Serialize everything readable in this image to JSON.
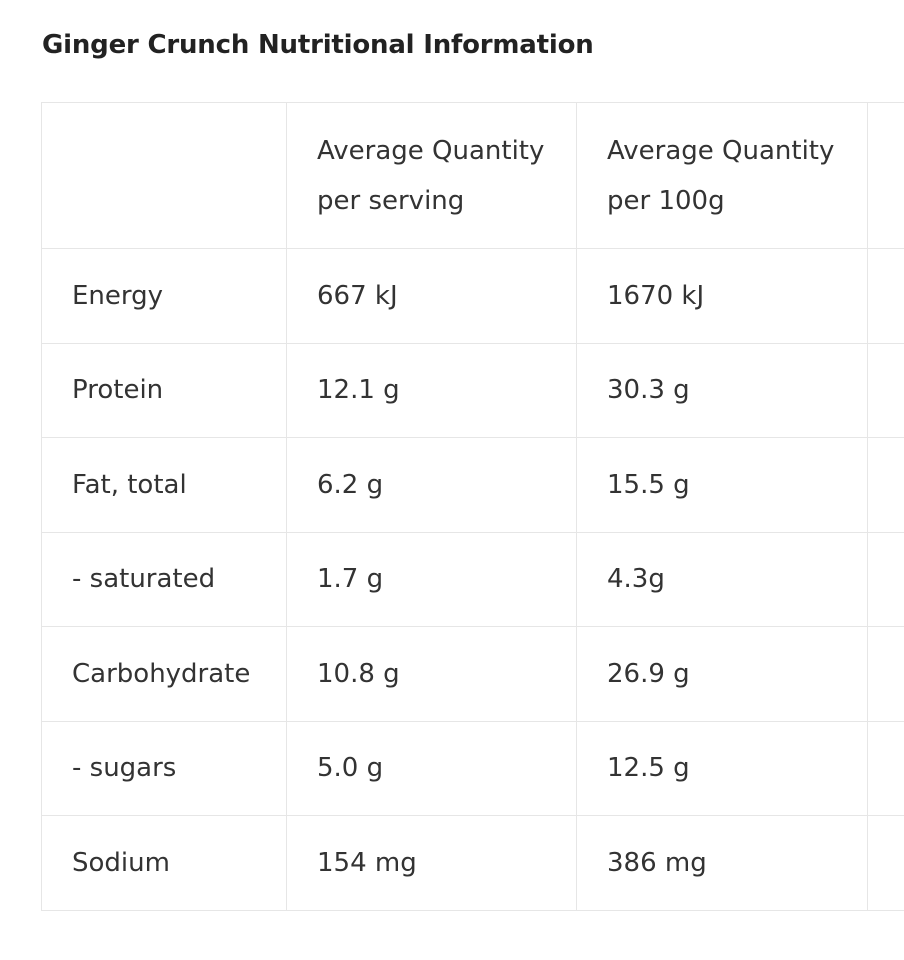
{
  "title": "Ginger Crunch Nutritional Information",
  "table": {
    "header": {
      "label": "",
      "per_serving": [
        "Average Quantity",
        "per serving"
      ],
      "per_100g": [
        "Average Quantity",
        "per 100g"
      ]
    },
    "rows": [
      {
        "label": "Energy",
        "per_serving": "667 kJ",
        "per_100g": "1670 kJ"
      },
      {
        "label": "Protein",
        "per_serving": "12.1 g",
        "per_100g": "30.3 g"
      },
      {
        "label": "Fat, total",
        "per_serving": "6.2 g",
        "per_100g": "15.5 g"
      },
      {
        "label": "- saturated",
        "per_serving": "1.7 g",
        "per_100g": "4.3g"
      },
      {
        "label": "Carbohydrate",
        "per_serving": "10.8 g",
        "per_100g": "26.9 g"
      },
      {
        "label": "- sugars",
        "per_serving": "5.0 g",
        "per_100g": "12.5 g"
      },
      {
        "label": "Sodium",
        "per_serving": "154 mg",
        "per_100g": "386 mg"
      }
    ]
  }
}
